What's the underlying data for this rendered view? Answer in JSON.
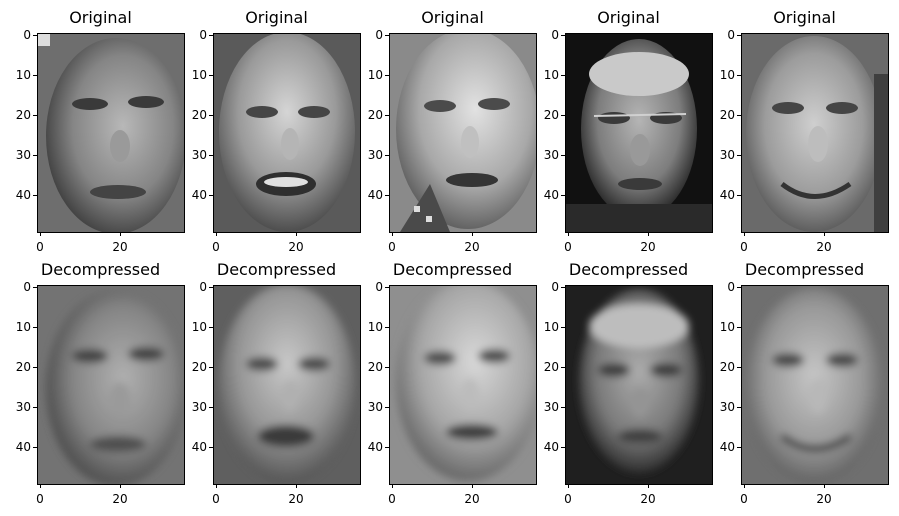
{
  "figure": {
    "panels": [
      {
        "title": "Original",
        "y_ticks": [
          "0",
          "10",
          "20",
          "30",
          "40"
        ],
        "x_ticks": [
          "0",
          "20"
        ],
        "image": "grayscale face photograph"
      },
      {
        "title": "Original",
        "y_ticks": [
          "0",
          "10",
          "20",
          "30",
          "40"
        ],
        "x_ticks": [
          "0",
          "20"
        ],
        "image": "grayscale face photograph"
      },
      {
        "title": "Original",
        "y_ticks": [
          "0",
          "10",
          "20",
          "30",
          "40"
        ],
        "x_ticks": [
          "0",
          "20"
        ],
        "image": "grayscale face photograph"
      },
      {
        "title": "Original",
        "y_ticks": [
          "0",
          "10",
          "20",
          "30",
          "40"
        ],
        "x_ticks": [
          "0",
          "20"
        ],
        "image": "grayscale face photograph"
      },
      {
        "title": "Original",
        "y_ticks": [
          "0",
          "10",
          "20",
          "30",
          "40"
        ],
        "x_ticks": [
          "0",
          "20"
        ],
        "image": "grayscale face photograph"
      },
      {
        "title": "Decompressed",
        "y_ticks": [
          "0",
          "10",
          "20",
          "30",
          "40"
        ],
        "x_ticks": [
          "0",
          "20"
        ],
        "image": "blurred grayscale face reconstruction"
      },
      {
        "title": "Decompressed",
        "y_ticks": [
          "0",
          "10",
          "20",
          "30",
          "40"
        ],
        "x_ticks": [
          "0",
          "20"
        ],
        "image": "blurred grayscale face reconstruction"
      },
      {
        "title": "Decompressed",
        "y_ticks": [
          "0",
          "10",
          "20",
          "30",
          "40"
        ],
        "x_ticks": [
          "0",
          "20"
        ],
        "image": "blurred grayscale face reconstruction"
      },
      {
        "title": "Decompressed",
        "y_ticks": [
          "0",
          "10",
          "20",
          "30",
          "40"
        ],
        "x_ticks": [
          "0",
          "20"
        ],
        "image": "blurred grayscale face reconstruction"
      },
      {
        "title": "Decompressed",
        "y_ticks": [
          "0",
          "10",
          "20",
          "30",
          "40"
        ],
        "x_ticks": [
          "0",
          "20"
        ],
        "image": "blurred grayscale face reconstruction"
      }
    ]
  }
}
